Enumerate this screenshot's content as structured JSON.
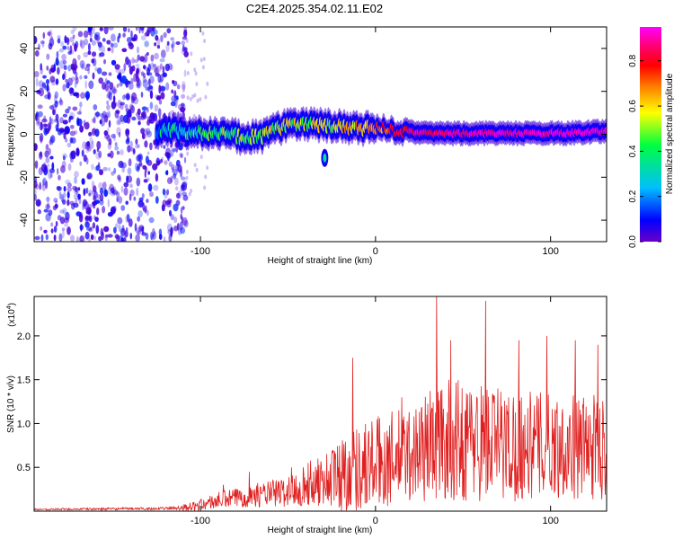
{
  "figure_title": "C2E4.2025.354.02.11.E02",
  "chart_data": [
    {
      "type": "heatmap",
      "title": "C2E4.2025.354.02.11.E02",
      "xlabel": "Height of straight line (km)",
      "ylabel": "Frequency (Hz)",
      "xlim": [
        -195,
        132
      ],
      "ylim": [
        -50,
        50
      ],
      "xticks": [
        -100,
        0,
        100
      ],
      "xtick_labels": [
        "-100",
        "0",
        "100"
      ],
      "yticks": [
        -40,
        -20,
        0,
        20,
        40
      ],
      "ytick_labels": [
        "-40",
        "-20",
        "0",
        "20",
        "40"
      ],
      "colorbar": {
        "label": "Normalized spectral amplitude",
        "range": [
          0,
          0.95
        ],
        "ticks": [
          0.0,
          0.2,
          0.4,
          0.6,
          0.8
        ],
        "tick_labels": [
          "0.0",
          "0.2",
          "0.4",
          "0.6",
          "0.8"
        ],
        "colormap": [
          "#6a00c8",
          "#0000ff",
          "#00bfff",
          "#00ff40",
          "#ffff00",
          "#ff8000",
          "#ff0000",
          "#ff0080",
          "#ff00ff"
        ]
      },
      "noise_region_x": [
        -195,
        -108
      ],
      "ridge": [
        {
          "x": -125,
          "y": 1.5,
          "a": 0.25
        },
        {
          "x": -115,
          "y": 2.0,
          "a": 0.3
        },
        {
          "x": -105,
          "y": 1.0,
          "a": 0.32
        },
        {
          "x": -95,
          "y": 0.5,
          "a": 0.35
        },
        {
          "x": -85,
          "y": 0.0,
          "a": 0.38
        },
        {
          "x": -75,
          "y": -1.5,
          "a": 0.4
        },
        {
          "x": -65,
          "y": -1.0,
          "a": 0.42
        },
        {
          "x": -58,
          "y": 2.0,
          "a": 0.45
        },
        {
          "x": -50,
          "y": 4.0,
          "a": 0.45
        },
        {
          "x": -40,
          "y": 5.0,
          "a": 0.45
        },
        {
          "x": -30,
          "y": 4.0,
          "a": 0.45
        },
        {
          "x": -20,
          "y": 3.5,
          "a": 0.5
        },
        {
          "x": -10,
          "y": 2.5,
          "a": 0.55
        },
        {
          "x": 0,
          "y": 3.0,
          "a": 0.6
        },
        {
          "x": 10,
          "y": 2.0,
          "a": 0.7
        },
        {
          "x": 20,
          "y": 1.0,
          "a": 0.8
        },
        {
          "x": 30,
          "y": 0.5,
          "a": 0.82
        },
        {
          "x": 40,
          "y": 0.5,
          "a": 0.85
        },
        {
          "x": 50,
          "y": 0.5,
          "a": 0.87
        },
        {
          "x": 60,
          "y": 0.5,
          "a": 0.88
        },
        {
          "x": 70,
          "y": 0.5,
          "a": 0.88
        },
        {
          "x": 80,
          "y": 0.5,
          "a": 0.9
        },
        {
          "x": 90,
          "y": 0.5,
          "a": 0.9
        },
        {
          "x": 100,
          "y": 0.5,
          "a": 0.9
        },
        {
          "x": 110,
          "y": 0.5,
          "a": 0.9
        },
        {
          "x": 120,
          "y": 1.0,
          "a": 0.92
        },
        {
          "x": 130,
          "y": 1.5,
          "a": 0.92
        }
      ],
      "side_blob": {
        "x": -29,
        "y": -11,
        "a": 0.3
      }
    },
    {
      "type": "line",
      "title": "",
      "xlabel": "Height of straight line (km)",
      "ylabel": "SNR (10 * v/v)",
      "y_scale_label": "(x10",
      "y_scale_exponent": "4",
      "y_scale_close": ")",
      "xlim": [
        -195,
        132
      ],
      "ylim": [
        0,
        2.45
      ],
      "xticks": [
        -100,
        0,
        100
      ],
      "xtick_labels": [
        "-100",
        "0",
        "100"
      ],
      "yticks": [
        0.5,
        1.0,
        1.5,
        2.0
      ],
      "ytick_labels": [
        "0.5",
        "1.0",
        "1.5",
        "2.0"
      ],
      "line_color": "#e02020",
      "envelope": [
        {
          "x": -195,
          "mean": 0.02,
          "amp": 0.01
        },
        {
          "x": -120,
          "mean": 0.03,
          "amp": 0.015
        },
        {
          "x": -105,
          "mean": 0.05,
          "amp": 0.05
        },
        {
          "x": -90,
          "mean": 0.12,
          "amp": 0.1
        },
        {
          "x": -70,
          "mean": 0.18,
          "amp": 0.13
        },
        {
          "x": -50,
          "mean": 0.22,
          "amp": 0.18
        },
        {
          "x": -40,
          "mean": 0.3,
          "amp": 0.25
        },
        {
          "x": -30,
          "mean": 0.35,
          "amp": 0.3
        },
        {
          "x": -20,
          "mean": 0.42,
          "amp": 0.45
        },
        {
          "x": -10,
          "mean": 0.5,
          "amp": 0.5
        },
        {
          "x": 0,
          "mean": 0.55,
          "amp": 0.55
        },
        {
          "x": 10,
          "mean": 0.6,
          "amp": 0.55
        },
        {
          "x": 20,
          "mean": 0.65,
          "amp": 0.55
        },
        {
          "x": 30,
          "mean": 0.75,
          "amp": 0.65
        },
        {
          "x": 40,
          "mean": 0.8,
          "amp": 0.7
        },
        {
          "x": 60,
          "mean": 0.8,
          "amp": 0.7
        },
        {
          "x": 80,
          "mean": 0.75,
          "amp": 0.65
        },
        {
          "x": 100,
          "mean": 0.75,
          "amp": 0.6
        },
        {
          "x": 132,
          "mean": 0.72,
          "amp": 0.6
        }
      ],
      "peaks": [
        {
          "x": -87,
          "y": 0.3
        },
        {
          "x": -72,
          "y": 0.45
        },
        {
          "x": -48,
          "y": 0.5
        },
        {
          "x": -33,
          "y": 0.6
        },
        {
          "x": -13,
          "y": 1.75
        },
        {
          "x": 15,
          "y": 1.3
        },
        {
          "x": 35,
          "y": 2.45
        },
        {
          "x": 43,
          "y": 1.95
        },
        {
          "x": 63,
          "y": 2.4
        },
        {
          "x": 82,
          "y": 1.95
        },
        {
          "x": 98,
          "y": 2.0
        },
        {
          "x": 114,
          "y": 1.95
        },
        {
          "x": 127,
          "y": 1.9
        }
      ]
    }
  ]
}
